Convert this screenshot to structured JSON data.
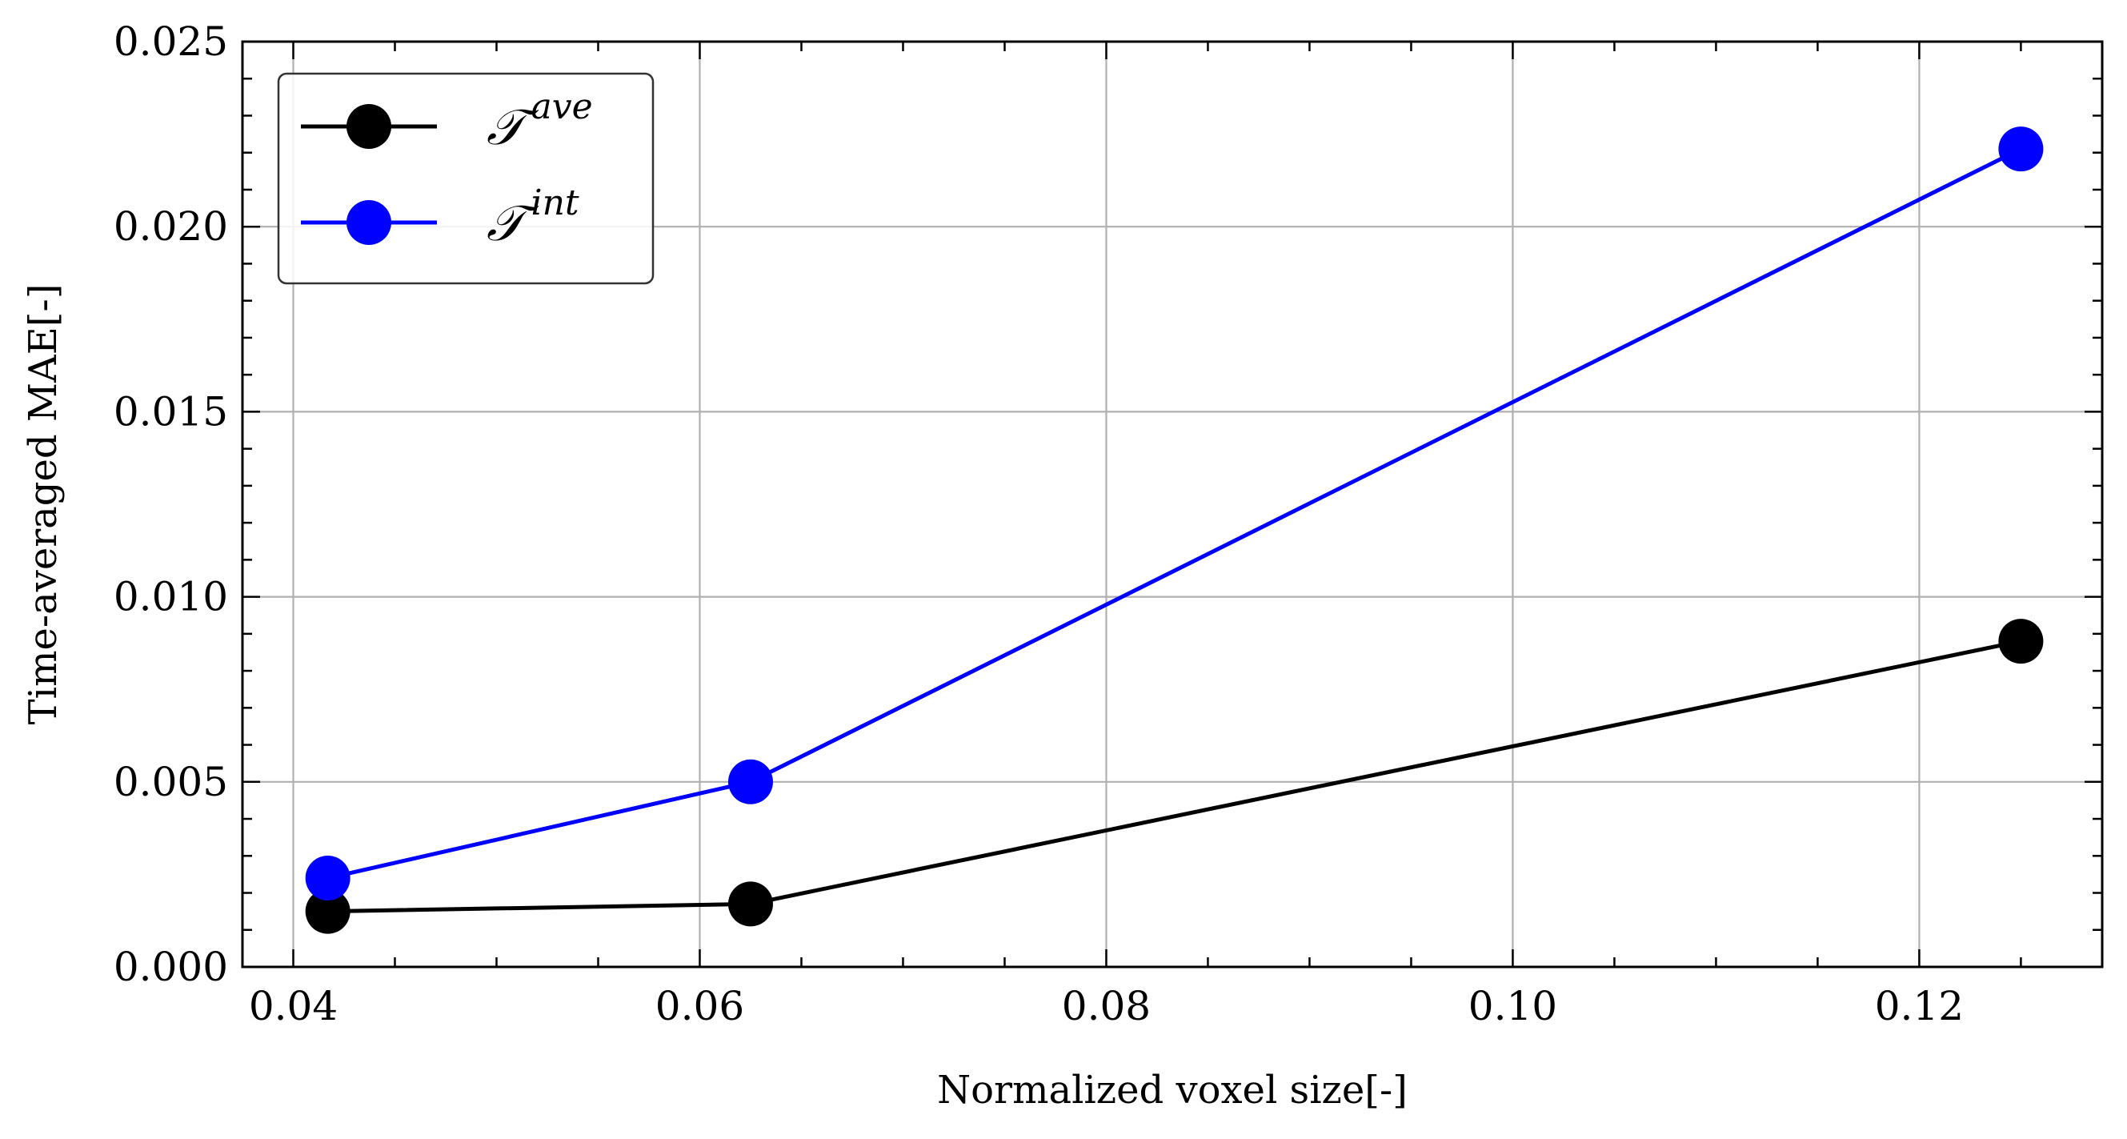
{
  "chart_data": {
    "type": "line",
    "title": "",
    "xlabel": "Normalized voxel size[-]",
    "ylabel": "Time-averaged MAE[-]",
    "xlim": [
      0.0375,
      0.129
    ],
    "ylim": [
      0.0,
      0.025
    ],
    "x_ticks": [
      0.04,
      0.06,
      0.08,
      0.1,
      0.12
    ],
    "x_tick_labels": [
      "0.04",
      "0.06",
      "0.08",
      "0.10",
      "0.12"
    ],
    "y_ticks": [
      0.0,
      0.005,
      0.01,
      0.015,
      0.02,
      0.025
    ],
    "y_tick_labels": [
      "0.000",
      "0.005",
      "0.010",
      "0.015",
      "0.020",
      "0.025"
    ],
    "grid": true,
    "legend_position": "top-left",
    "series": [
      {
        "name_base": "𝒯",
        "name_sup": "ave",
        "color": "#000000",
        "x": [
          0.0417,
          0.0625,
          0.125
        ],
        "y": [
          0.0015,
          0.0017,
          0.0088
        ]
      },
      {
        "name_base": "𝒯",
        "name_sup": "int",
        "color": "#0000ff",
        "x": [
          0.0417,
          0.0625,
          0.125
        ],
        "y": [
          0.0024,
          0.005,
          0.0221
        ]
      }
    ]
  }
}
